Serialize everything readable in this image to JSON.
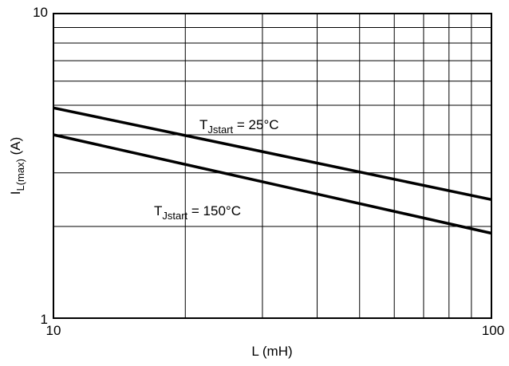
{
  "chart_data": {
    "type": "line",
    "title": "",
    "xlabel": "L (mH)",
    "ylabel": "I_L(max) (A)",
    "ylabel_main": "I",
    "ylabel_sub": "L(max)",
    "ylabel_unit": " (A)",
    "x_scale": "log",
    "y_scale": "log",
    "xlim": [
      10,
      100
    ],
    "ylim": [
      1,
      10
    ],
    "x_tick_labels": [
      "10",
      "100"
    ],
    "y_tick_labels": [
      "1",
      "10"
    ],
    "grid": true,
    "series": [
      {
        "name": "T_Jstart = 25°C",
        "label_main": "T",
        "label_sub": "Jstart",
        "label_rest": " = 25°C",
        "x": [
          10,
          100
        ],
        "y": [
          4.9,
          2.45
        ]
      },
      {
        "name": "T_Jstart = 150°C",
        "label_main": "T",
        "label_sub": "Jstart",
        "label_rest": " = 150°C",
        "x": [
          10,
          100
        ],
        "y": [
          4.0,
          1.9
        ]
      }
    ]
  }
}
